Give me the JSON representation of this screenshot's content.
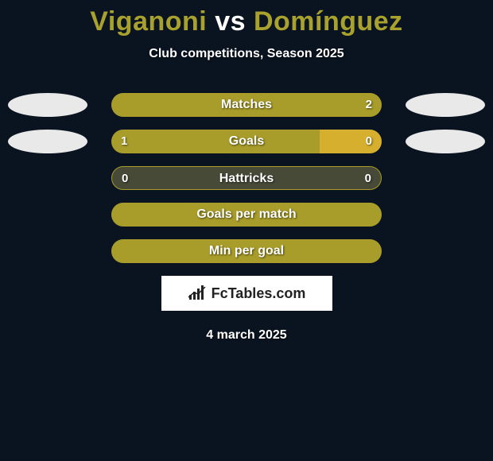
{
  "background_color": "#0a1420",
  "title": {
    "text_left": "Viganoni",
    "text_vs": " vs ",
    "text_right": "Domínguez",
    "color_left": "#a8a12e",
    "color_vs": "#ffffff",
    "color_right": "#a8a12e",
    "fontsize": 34
  },
  "subtitle": "Club competitions, Season 2025",
  "players": {
    "left_color": "#e9e9e9",
    "right_color": "#e9e9e9"
  },
  "bar_style": {
    "height": 30,
    "border_radius": 15,
    "empty_color": "#464a36",
    "left_fill": "#a89c2a",
    "right_fill": "#d6af2e",
    "neutral_fill": "#a89c2a",
    "label_color": "#ffffff"
  },
  "rows": [
    {
      "label": "Matches",
      "left_val": "",
      "right_val": "2",
      "show_ellipses": true,
      "left_pct": 0,
      "right_pct": 100,
      "left_color": "#a89c2a",
      "right_color": "#a89c2a"
    },
    {
      "label": "Goals",
      "left_val": "1",
      "right_val": "0",
      "show_ellipses": true,
      "left_pct": 77,
      "right_pct": 23,
      "left_color": "#a89c2a",
      "right_color": "#d6af2e"
    },
    {
      "label": "Hattricks",
      "left_val": "0",
      "right_val": "0",
      "show_ellipses": false,
      "left_pct": 0,
      "right_pct": 0,
      "left_color": "#464a36",
      "right_color": "#464a36",
      "empty": true
    },
    {
      "label": "Goals per match",
      "left_val": "",
      "right_val": "",
      "show_ellipses": false,
      "left_pct": 100,
      "right_pct": 0,
      "left_color": "#a89c2a",
      "right_color": "#a89c2a"
    },
    {
      "label": "Min per goal",
      "left_val": "",
      "right_val": "",
      "show_ellipses": false,
      "left_pct": 100,
      "right_pct": 0,
      "left_color": "#a89c2a",
      "right_color": "#a89c2a"
    }
  ],
  "logo": {
    "text": "FcTables.com",
    "icon_name": "barchart-icon"
  },
  "date": "4 march 2025"
}
